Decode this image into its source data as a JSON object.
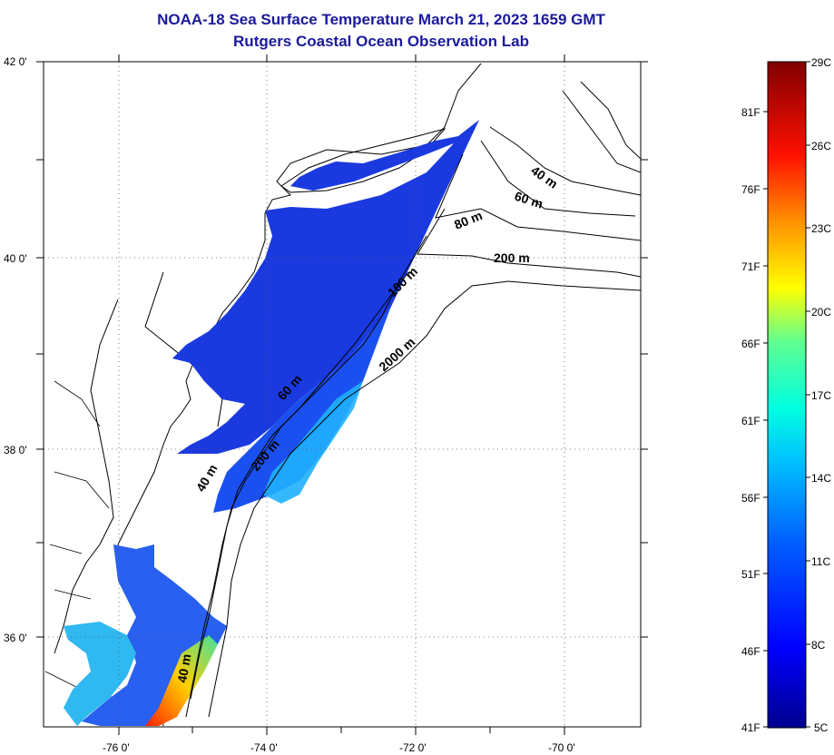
{
  "header": {
    "title": "NOAA-18 Sea Surface Temperature March 21, 2023 1659 GMT",
    "subtitle": "Rutgers Coastal Ocean Observation Lab"
  },
  "map": {
    "lat_labels": [
      "42 0'",
      "40 0'",
      "38 0'",
      "36 0'"
    ],
    "lon_labels": [
      "-76 0'",
      "-74 0'",
      "-72 0'",
      "-70 0'"
    ],
    "contour_labels": [
      "40 m",
      "60 m",
      "80 m",
      "200 m",
      "100 m",
      "2000 m",
      "60 m",
      "200 m",
      "40 m",
      "40 m"
    ]
  },
  "colorbar": {
    "celsius_labels": [
      "29C",
      "26C",
      "23C",
      "20C",
      "17C",
      "14C",
      "11C",
      "8C",
      "5C"
    ],
    "fahrenheit_labels": [
      "81F",
      "76F",
      "71F",
      "66F",
      "61F",
      "56F",
      "51F",
      "46F",
      "41F"
    ],
    "colors": [
      "#00008f",
      "#0000ff",
      "#0080ff",
      "#00ffff",
      "#80ff80",
      "#ffff00",
      "#ff8000",
      "#ff0000",
      "#800000"
    ]
  }
}
